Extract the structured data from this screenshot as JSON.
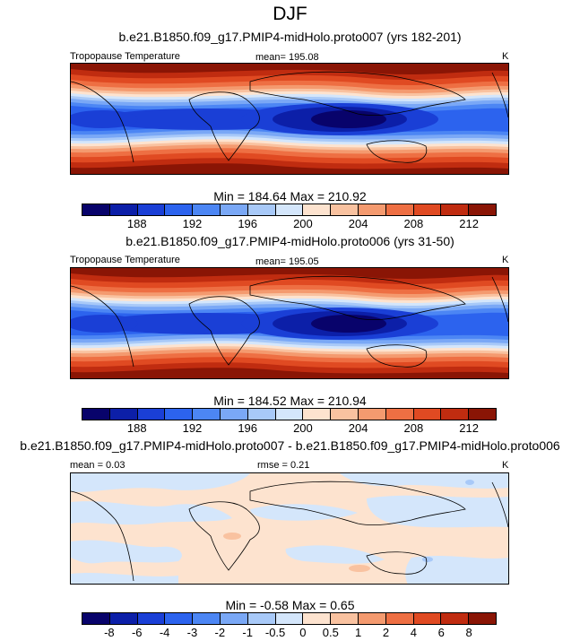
{
  "main_title": "DJF",
  "panels": [
    {
      "title": "b.e21.B1850.f09_g17.PMIP4-midHolo.proto007 (yrs 182-201)",
      "left_label": "Tropopause Temperature",
      "center_label": "mean= 195.08",
      "right_label": "K",
      "stats": "Min = 184.64 Max = 210.92",
      "colorbar_labels": [
        "188",
        "192",
        "196",
        "200",
        "204",
        "208",
        "212"
      ]
    },
    {
      "title": "b.e21.B1850.f09_g17.PMIP4-midHolo.proto006 (yrs 31-50)",
      "left_label": "Tropopause Temperature",
      "center_label": "mean= 195.05",
      "right_label": "K",
      "stats": "Min = 184.52 Max = 210.94",
      "colorbar_labels": [
        "188",
        "192",
        "196",
        "200",
        "204",
        "208",
        "212"
      ]
    },
    {
      "title": "b.e21.B1850.f09_g17.PMIP4-midHolo.proto007 - b.e21.B1850.f09_g17.PMIP4-midHolo.proto006",
      "left_label": "mean =   0.03",
      "center_label": "rmse =   0.21",
      "right_label": "K",
      "stats": "Min =  -0.58 Max =   0.65",
      "colorbar_labels": [
        "-8",
        "-6",
        "-4",
        "-3",
        "-2",
        "-1",
        "-0.5",
        "0",
        "0.5",
        "1",
        "2",
        "4",
        "6",
        "8"
      ]
    }
  ],
  "colors": {
    "abs_scale": [
      "#08036b",
      "#0c1fa8",
      "#1a3fd6",
      "#2c63ee",
      "#4c86f4",
      "#7aa8f6",
      "#a8c9f8",
      "#d4e6fb",
      "#fde3cf",
      "#f9c2a0",
      "#f49a6f",
      "#ee6f43",
      "#e04a22",
      "#c02c10",
      "#8a1505"
    ],
    "diff_scale": [
      "#08036b",
      "#0c1fa8",
      "#1a3fd6",
      "#2c63ee",
      "#4c86f4",
      "#7aa8f6",
      "#a8c9f8",
      "#d4e6fb",
      "#fde3cf",
      "#f9c2a0",
      "#f49a6f",
      "#ee6f43",
      "#e04a22",
      "#c02c10",
      "#8a1505"
    ]
  }
}
